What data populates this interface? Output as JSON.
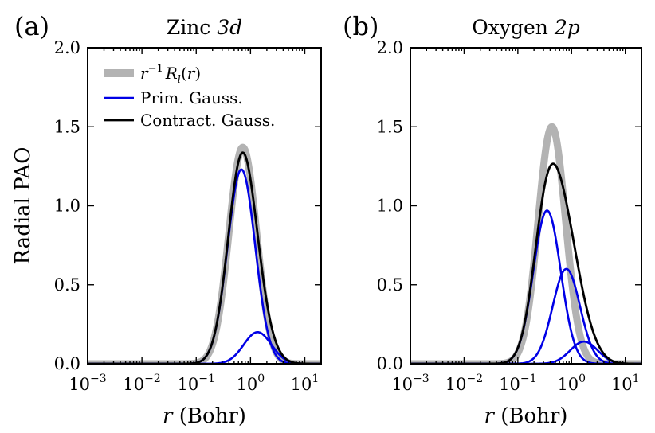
{
  "chart_data": [
    {
      "type": "line",
      "panel_label": "(a)",
      "title": "Zinc 3d",
      "title_main": "Zinc",
      "title_orbital": "3d",
      "xlabel": "r (Bohr)",
      "xlabel_var": "r",
      "xlabel_unit": "(Bohr)",
      "ylabel": "Radial PAO",
      "xscale": "log",
      "xlim": [
        0.001,
        20
      ],
      "ylim": [
        0,
        2.0
      ],
      "xticks": [
        {
          "value": 0.001,
          "base": "10",
          "exp": "−3"
        },
        {
          "value": 0.01,
          "base": "10",
          "exp": "−2"
        },
        {
          "value": 0.1,
          "base": "10",
          "exp": "−1"
        },
        {
          "value": 1,
          "base": "10",
          "exp": "0"
        },
        {
          "value": 10,
          "base": "10",
          "exp": "1"
        }
      ],
      "yticks": [
        "0.0",
        "0.5",
        "1.0",
        "1.5",
        "2.0"
      ],
      "legend_position": "upper-left",
      "legend": [
        {
          "label": "r⁻¹ Rₗ(r)",
          "color": "#b3b3b3"
        },
        {
          "label": "Prim. Gauss.",
          "color": "#0000e6"
        },
        {
          "label": "Contract. Gauss.",
          "color": "#000000"
        }
      ],
      "series": [
        {
          "name": "r⁻¹ Rₗ(r)",
          "role": "reference",
          "color": "#b3b3b3",
          "gaussians": [
            {
              "peak": 1.37,
              "r0": 0.72
            }
          ]
        },
        {
          "name": "Prim. Gauss. 1",
          "role": "primitive",
          "color": "#0000e6",
          "gaussians": [
            {
              "peak": 1.23,
              "r0": 0.68
            }
          ]
        },
        {
          "name": "Prim. Gauss. 2",
          "role": "primitive",
          "color": "#0000e6",
          "gaussians": [
            {
              "peak": 0.2,
              "r0": 1.35
            }
          ]
        },
        {
          "name": "Contract. Gauss.",
          "role": "contracted",
          "color": "#000000",
          "gaussians": [
            {
              "peak": 1.23,
              "r0": 0.68
            },
            {
              "peak": 0.2,
              "r0": 1.35
            }
          ]
        }
      ]
    },
    {
      "type": "line",
      "panel_label": "(b)",
      "title": "Oxygen 2p",
      "title_main": "Oxygen",
      "title_orbital": "2p",
      "xlabel": "r (Bohr)",
      "xlabel_var": "r",
      "xlabel_unit": "(Bohr)",
      "xscale": "log",
      "xlim": [
        0.001,
        20
      ],
      "ylim": [
        0,
        2.0
      ],
      "xticks": [
        {
          "value": 0.001,
          "base": "10",
          "exp": "−3"
        },
        {
          "value": 0.01,
          "base": "10",
          "exp": "−2"
        },
        {
          "value": 0.1,
          "base": "10",
          "exp": "−1"
        },
        {
          "value": 1,
          "base": "10",
          "exp": "0"
        },
        {
          "value": 10,
          "base": "10",
          "exp": "1"
        }
      ],
      "yticks": [
        "0.0",
        "0.5",
        "1.0",
        "1.5",
        "2.0"
      ],
      "series": [
        {
          "name": "r⁻¹ Rₗ(r)",
          "role": "reference",
          "color": "#b3b3b3",
          "gaussians": [
            {
              "peak": 1.5,
              "r0": 0.43
            }
          ]
        },
        {
          "name": "Prim. Gauss. 1",
          "role": "primitive",
          "color": "#0000e6",
          "gaussians": [
            {
              "peak": 0.97,
              "r0": 0.35
            }
          ]
        },
        {
          "name": "Prim. Gauss. 2",
          "role": "primitive",
          "color": "#0000e6",
          "gaussians": [
            {
              "peak": 0.6,
              "r0": 0.8
            }
          ]
        },
        {
          "name": "Prim. Gauss. 3",
          "role": "primitive",
          "color": "#0000e6",
          "gaussians": [
            {
              "peak": 0.14,
              "r0": 1.7
            }
          ]
        },
        {
          "name": "Contract. Gauss.",
          "role": "contracted",
          "color": "#000000",
          "gaussians": [
            {
              "peak": 0.97,
              "r0": 0.35
            },
            {
              "peak": 0.6,
              "r0": 0.8
            },
            {
              "peak": 0.14,
              "r0": 1.7
            }
          ]
        }
      ]
    }
  ]
}
